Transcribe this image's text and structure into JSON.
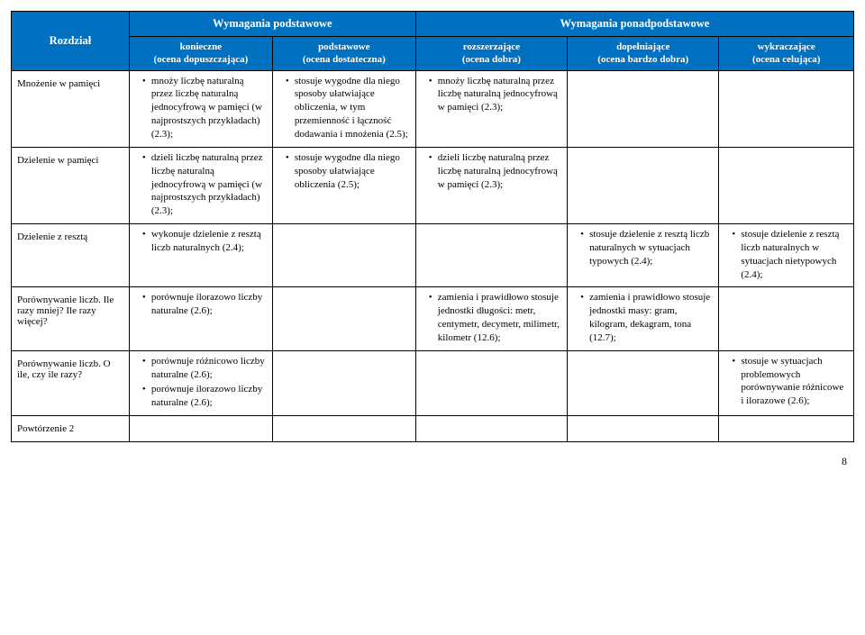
{
  "colors": {
    "header_bg": "#0070c0",
    "header_fg": "#ffffff",
    "border": "#000000",
    "page_bg": "#ffffff",
    "text": "#000000"
  },
  "header": {
    "rozdzial": "Rozdział",
    "podstawowe": "Wymagania podstawowe",
    "ponadpodstawowe": "Wymagania ponadpodstawowe",
    "sub": {
      "konieczne": "konieczne\n(ocena dopuszczająca)",
      "podstawowe": "podstawowe\n(ocena dostateczna)",
      "rozszerzajace": "rozszerzające\n(ocena dobra)",
      "dopelniajace": "dopełniające\n(ocena bardzo dobra)",
      "wykraczajace": "wykraczające\n(ocena celująca)"
    }
  },
  "rows": [
    {
      "label": "Mnożenie w pamięci",
      "cells": [
        [
          "mnoży liczbę naturalną przez liczbę naturalną jednocyfrową w pamięci (w najprostszych przykładach) (2.3);"
        ],
        [
          "stosuje wygodne dla niego sposoby ułatwiające obliczenia, w tym przemienność i łączność dodawania i mnożenia (2.5);"
        ],
        [
          "mnoży liczbę naturalną przez liczbę naturalną jednocyfrową w pamięci (2.3);"
        ],
        [],
        []
      ]
    },
    {
      "label": "Dzielenie w pamięci",
      "cells": [
        [
          "dzieli liczbę naturalną przez liczbę naturalną jednocyfrową w pamięci (w najprostszych przykładach) (2.3);"
        ],
        [
          "stosuje wygodne dla niego sposoby ułatwiające obliczenia (2.5);"
        ],
        [
          "dzieli liczbę naturalną przez liczbę naturalną jednocyfrową w pamięci (2.3);"
        ],
        [],
        []
      ]
    },
    {
      "label": "Dzielenie z resztą",
      "cells": [
        [
          "wykonuje dzielenie z resztą liczb naturalnych (2.4);"
        ],
        [],
        [],
        [
          "stosuje dzielenie z resztą liczb naturalnych w sytuacjach typowych (2.4);"
        ],
        [
          "stosuje dzielenie z resztą liczb naturalnych w sytuacjach nietypowych (2.4);"
        ]
      ]
    },
    {
      "label": "Porównywanie liczb. Ile razy mniej? Ile razy więcej?",
      "cells": [
        [
          "porównuje ilorazowo liczby naturalne (2.6);"
        ],
        [],
        [
          "zamienia i prawidłowo stosuje jednostki długości: metr, centymetr, decymetr, milimetr, kilometr (12.6);"
        ],
        [
          "zamienia i prawidłowo stosuje jednostki masy: gram, kilogram, dekagram, tona (12.7);"
        ],
        []
      ]
    },
    {
      "label": "Porównywanie liczb. O ile, czy ile razy?",
      "cells": [
        [
          "porównuje różnicowo liczby naturalne (2.6);",
          "porównuje ilorazowo liczby naturalne (2.6);"
        ],
        [],
        [],
        [],
        [
          "stosuje w sytuacjach problemowych porównywanie różnicowe i ilorazowe (2.6);"
        ]
      ]
    },
    {
      "label": "Powtórzenie 2",
      "cells": [
        [],
        [],
        [],
        [],
        []
      ]
    }
  ],
  "page_number": "8"
}
